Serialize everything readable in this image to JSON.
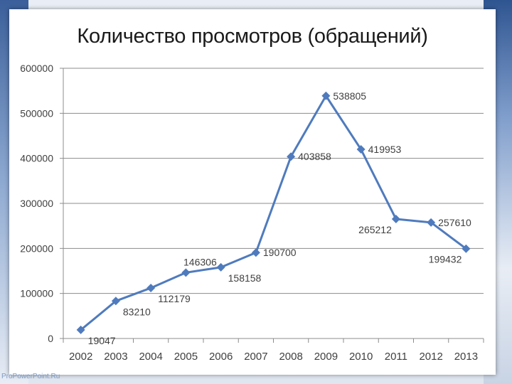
{
  "slide": {
    "title": "Количество просмотров (обращений)",
    "footer": "ProPowerPoint.Ru"
  },
  "colors": {
    "line": "#4f7bbd",
    "grid": "#8c8c8c",
    "text": "#404040"
  },
  "chart_data": {
    "type": "line",
    "title": "Количество просмотров (обращений)",
    "xlabel": "",
    "ylabel": "",
    "grid": true,
    "legend": "none",
    "ylim": [
      0,
      600000
    ],
    "yticks": [
      0,
      100000,
      200000,
      300000,
      400000,
      500000,
      600000
    ],
    "ytick_labels": [
      "0",
      "100000",
      "200000",
      "300000",
      "400000",
      "500000",
      "600000"
    ],
    "categories": [
      "2002",
      "2003",
      "2004",
      "2005",
      "2006",
      "2007",
      "2008",
      "2009",
      "2010",
      "2011",
      "2012",
      "2013"
    ],
    "series": [
      {
        "values": [
          19047,
          83210,
          112179,
          146306,
          158158,
          190700,
          403858,
          538805,
          419953,
          265212,
          257610,
          199432
        ]
      }
    ]
  }
}
